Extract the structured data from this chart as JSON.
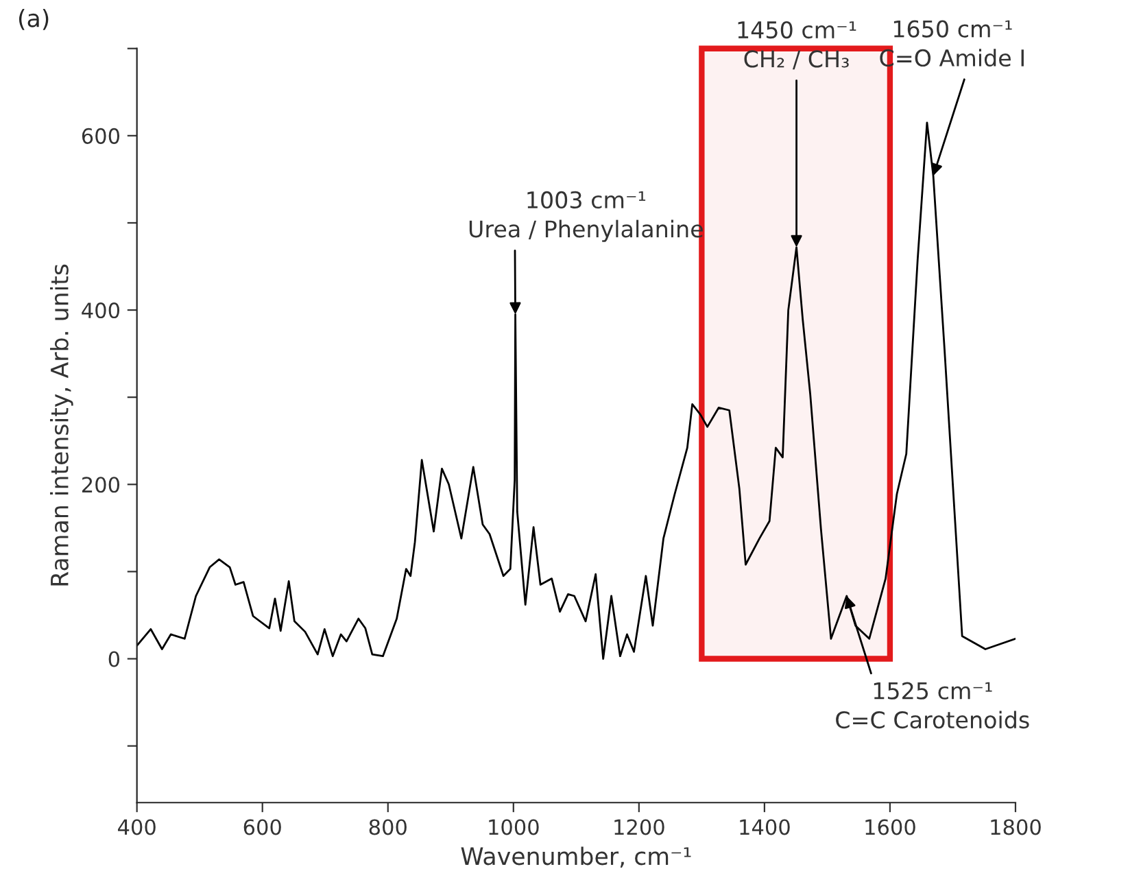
{
  "chart_data": {
    "type": "line",
    "xlabel": "Wavenumber, cm⁻¹",
    "ylabel": "Raman intensity, Arb. units",
    "xlim": [
      400,
      1800
    ],
    "ylim": [
      -165,
      700
    ],
    "xticks": [
      400,
      600,
      800,
      1000,
      1200,
      1400,
      1600,
      1800
    ],
    "yticks": [
      {
        "value": -100,
        "label": null
      },
      0,
      {
        "value": 100,
        "label": null
      },
      200,
      {
        "value": 300,
        "label": null
      },
      400,
      {
        "value": 500,
        "label": null
      },
      600,
      {
        "value": 700,
        "label": null
      }
    ],
    "grid": false,
    "legend": false,
    "marker": "none",
    "line_style": "solid",
    "series": [
      {
        "color": "#000000",
        "x": [
          400,
          422,
          440,
          454,
          476,
          494,
          516,
          531,
          548,
          557,
          570,
          585,
          611,
          620,
          629,
          642,
          651,
          668,
          688,
          699,
          712,
          725,
          734,
          753,
          764,
          775,
          792,
          814,
          829,
          836,
          843,
          854,
          873,
          886,
          897,
          917,
          936,
          951,
          962,
          984,
          995,
          1002,
          1003,
          1006,
          1019,
          1032,
          1043,
          1061,
          1074,
          1087,
          1097,
          1115,
          1131,
          1143,
          1156,
          1170,
          1181,
          1192,
          1211,
          1222,
          1239,
          1257,
          1277,
          1285,
          1298,
          1309,
          1327,
          1344,
          1360,
          1370,
          1392,
          1408,
          1418,
          1429,
          1438,
          1451,
          1461,
          1473,
          1490,
          1506,
          1531,
          1545,
          1567,
          1593,
          1611,
          1626,
          1644,
          1659,
          1669,
          1687,
          1715,
          1752,
          1800
        ],
        "values": [
          15,
          34,
          11,
          28,
          23,
          72,
          105,
          114,
          105,
          85,
          88,
          49,
          35,
          69,
          32,
          89,
          43,
          31,
          5,
          34,
          3,
          28,
          20,
          46,
          35,
          5,
          3,
          46,
          103,
          95,
          134,
          228,
          146,
          218,
          200,
          138,
          220,
          154,
          143,
          95,
          103,
          205,
          395,
          169,
          62,
          151,
          85,
          92,
          54,
          74,
          72,
          43,
          97,
          0,
          72,
          3,
          28,
          8,
          95,
          38,
          138,
          189,
          242,
          292,
          280,
          266,
          288,
          285,
          195,
          108,
          138,
          158,
          242,
          231,
          400,
          472,
          389,
          303,
          149,
          23,
          72,
          38,
          23,
          92,
          189,
          235,
          457,
          615,
          554,
          354,
          26,
          11,
          23
        ]
      }
    ],
    "bands": [
      {
        "axis": "x",
        "from": 1300,
        "to": 1600,
        "color": "#e31a1c"
      }
    ],
    "annotations": [
      "(a)",
      {
        "text": "1003 cm⁻¹\nUrea / Phenylalanine",
        "x": 1003,
        "y": 395
      },
      {
        "text": "1450 cm⁻¹\nCH₂ / CH₃",
        "x": 1451,
        "y": 472
      },
      {
        "text": "1525 cm⁻¹\nC=C Carotenoids",
        "x": 1531,
        "y": 72
      },
      {
        "text": "1650 cm⁻¹\nC=O Amide I",
        "x": 1669,
        "y": 554
      }
    ]
  }
}
